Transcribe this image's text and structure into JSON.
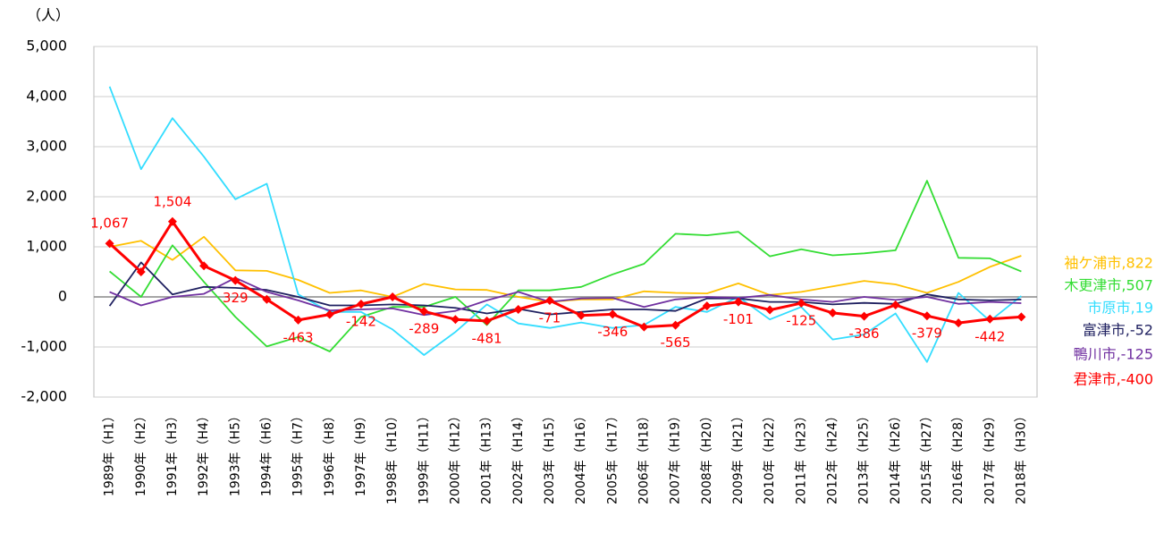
{
  "chart_data": {
    "type": "line",
    "y_unit": "（人）",
    "categories": [
      "1989年（H1）",
      "1990年（H2）",
      "1991年（H3）",
      "1992年（H4）",
      "1993年（H5）",
      "1994年（H6）",
      "1995年（H7）",
      "1996年（H8）",
      "1997年（H9）",
      "1998年（H10）",
      "1999年（H11）",
      "2000年（H12）",
      "2001年（H13）",
      "2002年（H14）",
      "2003年（H15）",
      "2004年（H16）",
      "2005年（H17）",
      "2006年（H18）",
      "2007年（H19）",
      "2008年（H20）",
      "2009年（H21）",
      "2010年（H22）",
      "2011年（H23）",
      "2012年（H24）",
      "2013年（H25）",
      "2014年（H26）",
      "2015年（H27）",
      "2016年（H28）",
      "2017年（H29）",
      "2018年（H30）"
    ],
    "ylim": [
      -2000,
      5000
    ],
    "yticks": [
      {
        "value": 5000,
        "label": "5,000"
      },
      {
        "value": 4000,
        "label": "4,000"
      },
      {
        "value": 3000,
        "label": "3,000"
      },
      {
        "value": 2000,
        "label": "2,000"
      },
      {
        "value": 1000,
        "label": "1,000"
      },
      0,
      {
        "value": -1000,
        "label": "-1,000"
      },
      {
        "value": -2000,
        "label": "-2,000"
      }
    ],
    "grid": true,
    "series": [
      {
        "name": "袖ケ浦市",
        "end_label": "袖ケ浦市,822",
        "color": "#ffc000",
        "values": [
          1000,
          1120,
          740,
          1200,
          530,
          520,
          340,
          80,
          130,
          0,
          260,
          150,
          140,
          0,
          -100,
          -50,
          -50,
          110,
          80,
          70,
          270,
          40,
          100,
          210,
          320,
          250,
          80,
          300,
          600,
          822
        ]
      },
      {
        "name": "木更津市",
        "end_label": "木更津市,507",
        "color": "#33dd33",
        "values": [
          510,
          0,
          1030,
          300,
          -400,
          -990,
          -800,
          -1090,
          -400,
          -200,
          -200,
          0,
          -560,
          130,
          130,
          200,
          450,
          660,
          1260,
          1230,
          1300,
          810,
          950,
          830,
          870,
          930,
          2320,
          780,
          770,
          507
        ]
      },
      {
        "name": "市原市",
        "end_label": "市原市,19",
        "color": "#33ddff",
        "values": [
          4200,
          2550,
          3570,
          2800,
          1950,
          2260,
          50,
          -300,
          -300,
          -650,
          -1160,
          -700,
          -150,
          -530,
          -620,
          -510,
          -620,
          -560,
          -200,
          -300,
          0,
          -450,
          -200,
          -850,
          -750,
          -330,
          -1300,
          80,
          -480,
          19
        ]
      },
      {
        "name": "富津市",
        "end_label": "富津市,-52",
        "color": "#1f2060",
        "values": [
          -180,
          690,
          50,
          200,
          180,
          140,
          0,
          -170,
          -170,
          -150,
          -170,
          -220,
          -330,
          -240,
          -350,
          -300,
          -250,
          -250,
          -280,
          -30,
          -30,
          -100,
          -100,
          -150,
          -120,
          -140,
          50,
          -50,
          -70,
          -52
        ]
      },
      {
        "name": "鴨川市",
        "end_label": "鴨川市,-125",
        "color": "#7030a0",
        "values": [
          100,
          -170,
          0,
          60,
          380,
          100,
          -70,
          -270,
          -250,
          -230,
          -360,
          -280,
          -70,
          100,
          -100,
          -30,
          -20,
          -200,
          -50,
          0,
          -20,
          40,
          -50,
          -100,
          0,
          -60,
          0,
          -140,
          -100,
          -125
        ]
      },
      {
        "name": "君津市",
        "end_label": "君津市,-400",
        "color": "#ff0000",
        "markers": true,
        "values": [
          1067,
          500,
          1504,
          620,
          329,
          -50,
          -463,
          -350,
          -142,
          0,
          -289,
          -450,
          -481,
          -250,
          -71,
          -370,
          -346,
          -600,
          -565,
          -180,
          -101,
          -260,
          -125,
          -320,
          -386,
          -160,
          -379,
          -520,
          -442,
          -400
        ],
        "value_labels": [
          "1,067",
          null,
          "1,504",
          null,
          "329",
          null,
          "-463",
          null,
          "-142",
          null,
          "-289",
          null,
          "-481",
          null,
          "-71",
          null,
          "-346",
          null,
          "-565",
          null,
          "-101",
          null,
          "-125",
          null,
          "-386",
          null,
          "-379",
          null,
          "-442",
          null
        ]
      }
    ]
  }
}
